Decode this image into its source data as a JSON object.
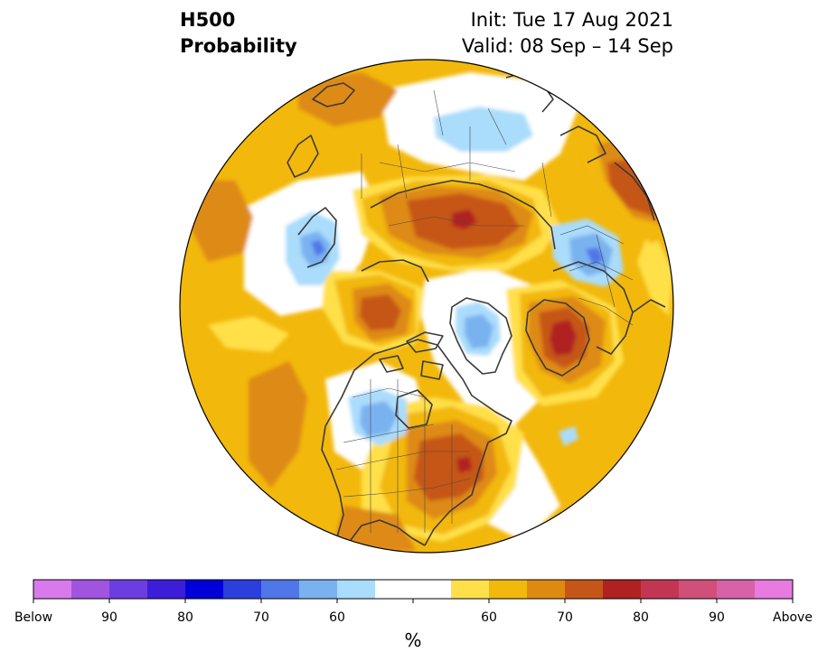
{
  "header": {
    "variable": "H500",
    "product": "Probability",
    "init": "Init: Tue 17 Aug 2021",
    "valid": "Valid: 08 Sep – 14 Sep"
  },
  "colorbar": {
    "unit": "%",
    "colors": [
      "#d87aec",
      "#a054e0",
      "#6c3de0",
      "#3c1ed8",
      "#0000d8",
      "#2a3fdc",
      "#5077e8",
      "#7ab2f0",
      "#aadcfc",
      "#ffffff",
      "#ffffff",
      "#ffe04a",
      "#f2b80c",
      "#de8a12",
      "#c65618",
      "#b02222",
      "#c23654",
      "#d0507a",
      "#d862a8",
      "#e87ae0"
    ],
    "tick_labels": [
      "Below",
      "90",
      "80",
      "70",
      "60",
      "",
      "",
      "60",
      "70",
      "80",
      "90",
      "Above"
    ]
  },
  "map": {
    "background": "#f2b80c",
    "colors": {
      "above_55": "#ffe04a",
      "above_60": "#f2b80c",
      "above_65": "#de8a12",
      "above_70": "#c65618",
      "above_75": "#b02222",
      "near_normal": "#ffffff",
      "below_55": "#aadcfc",
      "below_60": "#7ab2f0",
      "below_65": "#5077e8"
    }
  }
}
